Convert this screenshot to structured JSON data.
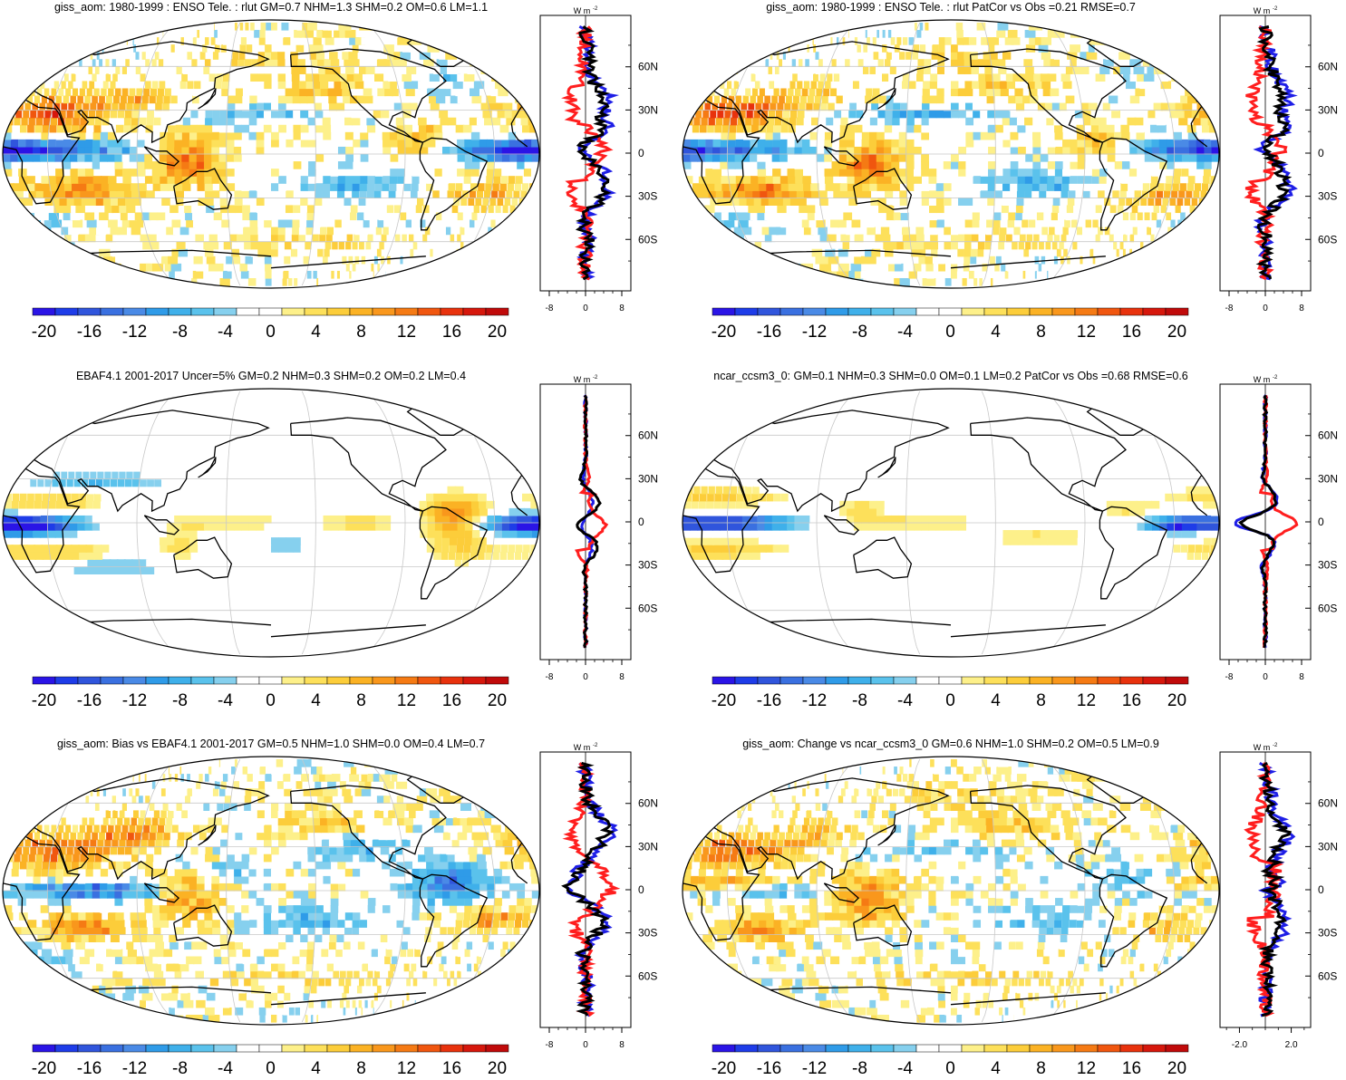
{
  "colors": {
    "palette": [
      "#2a14e6",
      "#1e3ce8",
      "#3055dc",
      "#3a70e0",
      "#4a8ae6",
      "#2f9be8",
      "#3fb0ea",
      "#5ac2ec",
      "#86d0ee",
      "#ffffff",
      "#ffffff",
      "#fdf08a",
      "#fde05a",
      "#fccd3a",
      "#fbb224",
      "#f9971c",
      "#f57a14",
      "#f0560f",
      "#e8320d",
      "#d6170c",
      "#c00a0a"
    ],
    "ocean_bg": "#ffffff",
    "coast": "#000000",
    "grid": "#c8c8c8",
    "series_blue": "#1e1ee6",
    "series_red": "#ff1e1e",
    "series_black": "#000000"
  },
  "colorbar": {
    "tick_labels": [
      "-20",
      "-16",
      "-12",
      "-8",
      "-4",
      "0",
      "4",
      "8",
      "12",
      "16",
      "20"
    ]
  },
  "panels": [
    {
      "title": "giss_aom: 1980-1999 : ENSO Tele. : rlut GM=0.7 NHM=1.3 SHM=0.2 OM=0.6 LM=1.1",
      "profile_units": "W m",
      "units_exp": "-2",
      "xticks": [
        "-8",
        "0",
        "8"
      ],
      "lat_labels": [
        "60N",
        "30N",
        "0",
        "30S",
        "60S"
      ]
    },
    {
      "title": "giss_aom: 1980-1999 : ENSO Tele. : rlut PatCor vs Obs =0.21 RMSE=0.7",
      "profile_units": "W m",
      "units_exp": "-2",
      "xticks": [
        "-8",
        "0",
        "8"
      ],
      "lat_labels": [
        "60N",
        "30N",
        "0",
        "30S",
        "60S"
      ]
    },
    {
      "title": "EBAF4.1 2001-2017 Uncer=5% GM=0.2 NHM=0.3 SHM=0.2 OM=0.2 LM=0.4",
      "profile_units": "W m",
      "units_exp": "-2",
      "xticks": [
        "-8",
        "0",
        "8"
      ],
      "lat_labels": [
        "60N",
        "30N",
        "0",
        "30S",
        "60S"
      ]
    },
    {
      "title": "ncar_ccsm3_0: GM=0.1 NHM=0.3 SHM=0.0 OM=0.1 LM=0.2 PatCor vs Obs =0.68 RMSE=0.6",
      "profile_units": "W m",
      "units_exp": "-2",
      "xticks": [
        "-8",
        "0",
        "8"
      ],
      "lat_labels": [
        "60N",
        "30N",
        "0",
        "30S",
        "60S"
      ]
    },
    {
      "title": "giss_aom: Bias vs EBAF4.1 2001-2017 GM=0.5 NHM=1.0 SHM=0.0 OM=0.4 LM=0.7",
      "profile_units": "W m",
      "units_exp": "-2",
      "xticks": [
        "-8",
        "0",
        "8"
      ],
      "lat_labels": [
        "60N",
        "30N",
        "0",
        "30S",
        "60S"
      ]
    },
    {
      "title": "giss_aom: Change vs ncar_ccsm3_0 GM=0.6 NHM=1.0 SHM=0.2 OM=0.5 LM=0.9",
      "profile_units": "W m",
      "units_exp": "-2",
      "xticks": [
        "-2.0",
        "2.0"
      ],
      "lat_labels": [
        "60N",
        "30N",
        "0",
        "30S",
        "60S"
      ]
    }
  ],
  "chart_data": [
    {
      "type": "heatmap",
      "title": "giss_aom: 1980-1999 : ENSO Tele. : rlut GM=0.7 NHM=1.3 SHM=0.2 OM=0.6 LM=1.1",
      "colorbar_range": [
        -22,
        22
      ],
      "profile_xlim": [
        -10,
        10
      ],
      "ylim": [
        -90,
        90
      ]
    },
    {
      "type": "heatmap",
      "title": "giss_aom: 1980-1999 : ENSO Tele. : rlut PatCor vs Obs =0.21 RMSE=0.7",
      "colorbar_range": [
        -22,
        22
      ],
      "profile_xlim": [
        -10,
        10
      ],
      "ylim": [
        -90,
        90
      ]
    },
    {
      "type": "heatmap",
      "title": "EBAF4.1 2001-2017 Uncer=5% GM=0.2 NHM=0.3 SHM=0.2 OM=0.2 LM=0.4",
      "colorbar_range": [
        -22,
        22
      ],
      "profile_xlim": [
        -10,
        10
      ],
      "ylim": [
        -90,
        90
      ]
    },
    {
      "type": "heatmap",
      "title": "ncar_ccsm3_0: GM=0.1 NHM=0.3 SHM=0.0 OM=0.1 LM=0.2 PatCor vs Obs =0.68 RMSE=0.6",
      "colorbar_range": [
        -22,
        22
      ],
      "profile_xlim": [
        -10,
        10
      ],
      "ylim": [
        -90,
        90
      ]
    },
    {
      "type": "heatmap",
      "title": "giss_aom: Bias vs EBAF4.1 2001-2017 GM=0.5 NHM=1.0 SHM=0.0 OM=0.4 LM=0.7",
      "colorbar_range": [
        -22,
        22
      ],
      "profile_xlim": [
        -10,
        10
      ],
      "ylim": [
        -90,
        90
      ]
    },
    {
      "type": "heatmap",
      "title": "giss_aom: Change vs ncar_ccsm3_0 GM=0.6 NHM=1.0 SHM=0.2 OM=0.5 LM=0.9",
      "colorbar_range": [
        -22,
        22
      ],
      "profile_xlim": [
        -3.5,
        3.5
      ],
      "ylim": [
        -90,
        90
      ]
    }
  ]
}
